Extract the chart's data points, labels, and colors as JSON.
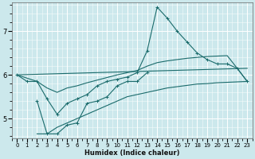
{
  "xlabel": "Humidex (Indice chaleur)",
  "bg_color": "#cce8ec",
  "line_color": "#1a6b6b",
  "grid_color": "#ffffff",
  "xlim": [
    -0.5,
    23.5
  ],
  "ylim": [
    4.55,
    7.65
  ],
  "xticks": [
    0,
    1,
    2,
    3,
    4,
    5,
    6,
    7,
    8,
    9,
    10,
    11,
    12,
    13,
    14,
    15,
    16,
    17,
    18,
    19,
    20,
    21,
    22,
    23
  ],
  "yticks": [
    5,
    6,
    7
  ],
  "line1": {
    "x": [
      0,
      1,
      2,
      3,
      4,
      5,
      6,
      7,
      8,
      9,
      10,
      11,
      12,
      13,
      14,
      15,
      16,
      17,
      18,
      19,
      20,
      21,
      22,
      23
    ],
    "y": [
      6.0,
      5.85,
      5.85,
      5.45,
      5.1,
      5.35,
      5.45,
      5.55,
      5.75,
      5.85,
      5.9,
      5.95,
      6.05,
      6.55,
      7.55,
      7.3,
      7.0,
      6.75,
      6.5,
      6.35,
      6.25,
      6.25,
      6.15,
      5.85
    ]
  },
  "line2": {
    "x": [
      0,
      23
    ],
    "y": [
      6.0,
      6.15
    ]
  },
  "line3": {
    "x": [
      0,
      2,
      3,
      4,
      5,
      6,
      7,
      8,
      9,
      10,
      11,
      12,
      13,
      14,
      15,
      16,
      17,
      18,
      19,
      20,
      21,
      22,
      23
    ],
    "y": [
      6.0,
      5.85,
      5.7,
      5.6,
      5.7,
      5.75,
      5.82,
      5.88,
      5.94,
      6.0,
      6.05,
      6.1,
      6.2,
      6.28,
      6.32,
      6.35,
      6.38,
      6.4,
      6.42,
      6.43,
      6.44,
      6.15,
      5.85
    ]
  },
  "line4": {
    "x": [
      2,
      3,
      4,
      5,
      6,
      7,
      8,
      9,
      10,
      11,
      12,
      13,
      14,
      15,
      16,
      17,
      18,
      19,
      20,
      21,
      22,
      23
    ],
    "y": [
      4.65,
      4.65,
      4.8,
      4.9,
      5.0,
      5.1,
      5.2,
      5.3,
      5.4,
      5.5,
      5.55,
      5.6,
      5.65,
      5.7,
      5.73,
      5.76,
      5.79,
      5.8,
      5.82,
      5.83,
      5.84,
      5.85
    ]
  },
  "line5": {
    "comment": "small zigzag line in lower-left area: (2,5.4),(3,4.65),(4,4.65),(5,4.85),(6,4.9),(7,5.35),(8,5.4),(9,5.5),(10,5.75),(11,5.85),(12,5.85),(13,6.05)",
    "x": [
      2,
      3,
      4,
      5,
      6,
      7,
      8,
      9,
      10,
      11,
      12,
      13
    ],
    "y": [
      5.4,
      4.65,
      4.65,
      4.85,
      4.9,
      5.35,
      5.4,
      5.5,
      5.75,
      5.85,
      5.85,
      6.05
    ]
  }
}
